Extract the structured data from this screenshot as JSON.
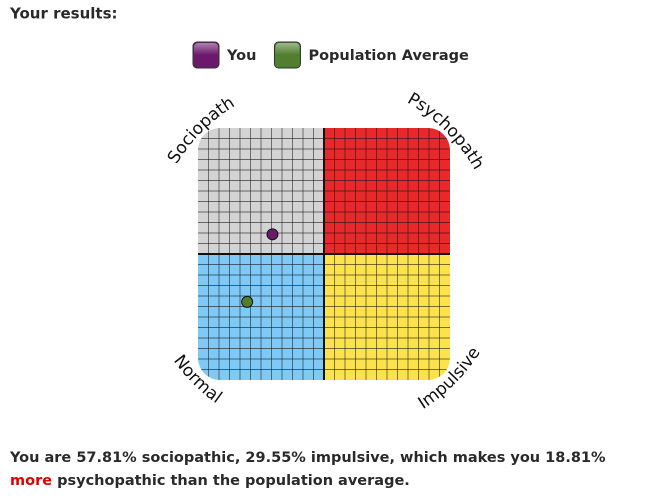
{
  "chart_data": {
    "type": "scatter",
    "title": "Your results:",
    "series": [
      {
        "name": "You",
        "color": "#6b1a6b",
        "x": [
          29.55
        ],
        "values": [
          57.81
        ]
      },
      {
        "name": "Population Average",
        "color": "#4f7f2f",
        "x": [
          19.5
        ],
        "values": [
          31
        ]
      }
    ],
    "xlim": [
      0,
      100
    ],
    "ylim": [
      0,
      100
    ],
    "quadrants": [
      {
        "label": "Sociopath",
        "color": "#d3d3d3"
      },
      {
        "label": "Psychopath",
        "color": "#e8292b"
      },
      {
        "label": "Normal",
        "color": "#7ec9f5"
      },
      {
        "label": "Impulsive",
        "color": "#fde24f"
      }
    ]
  },
  "summary": {
    "before": "You are 57.81% sociopathic, 29.55% impulsive, which makes you 18.81% ",
    "highlight": "more",
    "after": " psychopathic than the population average."
  }
}
